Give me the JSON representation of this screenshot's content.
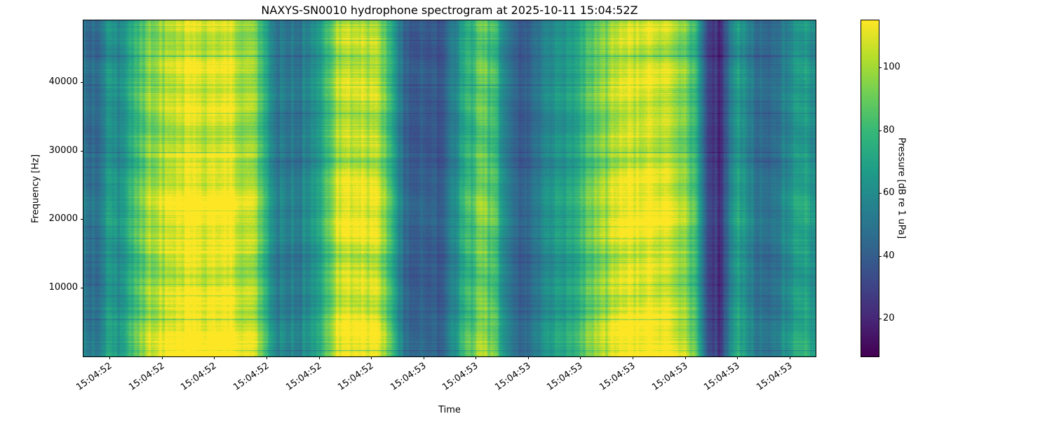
{
  "chart_data": {
    "type": "heatmap",
    "subtype": "spectrogram",
    "title": "NAXYS-SN0010 hydrophone spectrogram at 2025-10-11 15:04:52Z",
    "xlabel": "Time",
    "ylabel": "Frequency [Hz]",
    "colorbar_label": "Pressure [dB re 1 uPa]",
    "colormap": "viridis",
    "x_tick_labels": [
      "15:04:52",
      "15:04:52",
      "15:04:52",
      "15:04:52",
      "15:04:52",
      "15:04:52",
      "15:04:53",
      "15:04:53",
      "15:04:53",
      "15:04:53",
      "15:04:53",
      "15:04:53",
      "15:04:53",
      "15:04:53"
    ],
    "y_ticks": [
      10000,
      20000,
      30000,
      40000
    ],
    "freq_range_hz": [
      0,
      49000
    ],
    "value_range_db": [
      8,
      115
    ],
    "colorbar_ticks": [
      20,
      40,
      60,
      80,
      100
    ],
    "legend": "none",
    "grid": false,
    "time_bins": 56,
    "time_column_profile": [
      0.34,
      0.34,
      0.52,
      0.48,
      0.68,
      0.8,
      0.86,
      0.9,
      0.92,
      0.88,
      0.92,
      0.9,
      0.86,
      0.8,
      0.45,
      0.38,
      0.37,
      0.45,
      0.62,
      0.82,
      0.9,
      0.9,
      0.86,
      0.66,
      0.36,
      0.3,
      0.28,
      0.3,
      0.48,
      0.62,
      0.74,
      0.62,
      0.4,
      0.24,
      0.38,
      0.46,
      0.52,
      0.58,
      0.68,
      0.78,
      0.88,
      0.9,
      0.92,
      0.9,
      0.86,
      0.8,
      0.62,
      0.16,
      0.14,
      0.58,
      0.4,
      0.3,
      0.34,
      0.5,
      0.52,
      0.48
    ],
    "freq_bands": [
      {
        "center_hz": 21000,
        "width_hz": 5000,
        "boost": 0.1
      },
      {
        "center_hz": 1000,
        "width_hz": 7000,
        "boost": 0.12
      },
      {
        "center_hz": 40000,
        "width_hz": 2500,
        "boost": 0.05
      }
    ],
    "viridis_stops": [
      "#440154",
      "#482878",
      "#3e4989",
      "#31688e",
      "#26828e",
      "#1f9e89",
      "#35b779",
      "#6ece58",
      "#b5de2b",
      "#fde725"
    ]
  }
}
